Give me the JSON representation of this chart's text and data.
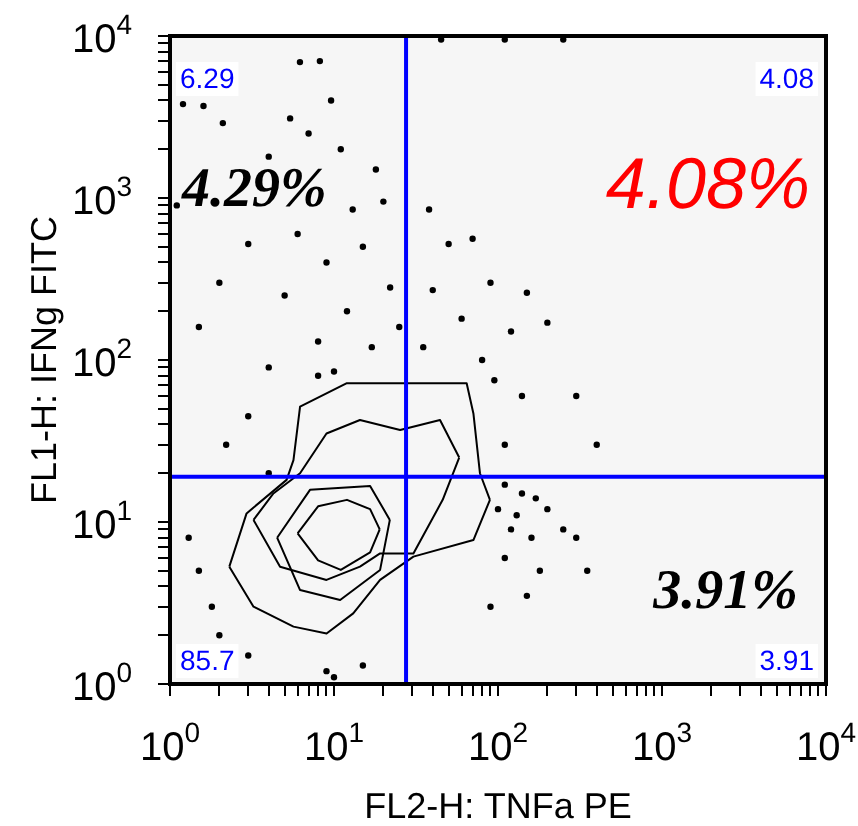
{
  "chart_data": {
    "type": "scatter",
    "xlabel": "FL2-H: TNFa PE",
    "ylabel": "FL1-H: IFNg FITC",
    "log": "xy",
    "grid": false,
    "legend": false,
    "marker": "circle",
    "xlim": [
      1,
      10000
    ],
    "ylim": [
      1,
      10000
    ],
    "xticks": [
      {
        "value": 1,
        "label": "10$^{0}$"
      },
      {
        "value": 2,
        "label": null
      },
      {
        "value": 3,
        "label": null
      },
      {
        "value": 4,
        "label": null
      },
      {
        "value": 5,
        "label": null
      },
      {
        "value": 6,
        "label": null
      },
      {
        "value": 7,
        "label": null
      },
      {
        "value": 8,
        "label": null
      },
      {
        "value": 9,
        "label": null
      },
      {
        "value": 10,
        "label": "10$^{1}$"
      },
      {
        "value": 20,
        "label": null
      },
      {
        "value": 30,
        "label": null
      },
      {
        "value": 40,
        "label": null
      },
      {
        "value": 50,
        "label": null
      },
      {
        "value": 60,
        "label": null
      },
      {
        "value": 70,
        "label": null
      },
      {
        "value": 80,
        "label": null
      },
      {
        "value": 90,
        "label": null
      },
      {
        "value": 100,
        "label": "10$^{2}$"
      },
      {
        "value": 200,
        "label": null
      },
      {
        "value": 300,
        "label": null
      },
      {
        "value": 400,
        "label": null
      },
      {
        "value": 500,
        "label": null
      },
      {
        "value": 600,
        "label": null
      },
      {
        "value": 700,
        "label": null
      },
      {
        "value": 800,
        "label": null
      },
      {
        "value": 900,
        "label": null
      },
      {
        "value": 1000,
        "label": "10$^{3}$"
      },
      {
        "value": 2000,
        "label": null
      },
      {
        "value": 3000,
        "label": null
      },
      {
        "value": 4000,
        "label": null
      },
      {
        "value": 5000,
        "label": null
      },
      {
        "value": 6000,
        "label": null
      },
      {
        "value": 7000,
        "label": null
      },
      {
        "value": 8000,
        "label": null
      },
      {
        "value": 9000,
        "label": null
      },
      {
        "value": 10000,
        "label": "10$^{4}$"
      }
    ],
    "yticks": [
      {
        "value": 1,
        "label": "10$^{0}$"
      },
      {
        "value": 2,
        "label": null
      },
      {
        "value": 3,
        "label": null
      },
      {
        "value": 4,
        "label": null
      },
      {
        "value": 5,
        "label": null
      },
      {
        "value": 6,
        "label": null
      },
      {
        "value": 7,
        "label": null
      },
      {
        "value": 8,
        "label": null
      },
      {
        "value": 9,
        "label": null
      },
      {
        "value": 10,
        "label": "10$^{1}$"
      },
      {
        "value": 20,
        "label": null
      },
      {
        "value": 30,
        "label": null
      },
      {
        "value": 40,
        "label": null
      },
      {
        "value": 50,
        "label": null
      },
      {
        "value": 60,
        "label": null
      },
      {
        "value": 70,
        "label": null
      },
      {
        "value": 80,
        "label": null
      },
      {
        "value": 90,
        "label": null
      },
      {
        "value": 100,
        "label": "10$^{2}$"
      },
      {
        "value": 200,
        "label": null
      },
      {
        "value": 300,
        "label": null
      },
      {
        "value": 400,
        "label": null
      },
      {
        "value": 500,
        "label": null
      },
      {
        "value": 600,
        "label": null
      },
      {
        "value": 700,
        "label": null
      },
      {
        "value": 800,
        "label": null
      },
      {
        "value": 900,
        "label": null
      },
      {
        "value": 1000,
        "label": "10$^{3}$"
      },
      {
        "value": 2000,
        "label": null
      },
      {
        "value": 3000,
        "label": null
      },
      {
        "value": 4000,
        "label": null
      },
      {
        "value": 5000,
        "label": null
      },
      {
        "value": 6000,
        "label": null
      },
      {
        "value": 7000,
        "label": null
      },
      {
        "value": 8000,
        "label": null
      },
      {
        "value": 9000,
        "label": null
      },
      {
        "value": 10000,
        "label": "10$^{4}$"
      }
    ],
    "ref_lines": [
      {
        "axis": "x",
        "value": 27.5,
        "color": "#0000ff"
      },
      {
        "axis": "y",
        "value": 19,
        "color": "#0000ff"
      }
    ],
    "annotations": [
      "6.29",
      "4.08",
      "85.7",
      "3.91",
      "4.29%",
      "4.08%",
      "3.91%"
    ],
    "series": [
      {
        "type": "scatter",
        "color": "#000000",
        "x": [
          6.2,
          8.2,
          9.6,
          1.2,
          1.6,
          2.1,
          5.4,
          7,
          4,
          11,
          18,
          1.1,
          13,
          20,
          3,
          6,
          9,
          15,
          2,
          5,
          12,
          22,
          1.5,
          8,
          17,
          25,
          4,
          10,
          45,
          110,
          250,
          38,
          50,
          70,
          90,
          40,
          150,
          60,
          120,
          200,
          35,
          80,
          95,
          140,
          300,
          400,
          110,
          110,
          140,
          170,
          100,
          130,
          200,
          250,
          120,
          160,
          300,
          110,
          180,
          350,
          90,
          150,
          1.3,
          1.5,
          1.8,
          2,
          3,
          9,
          15,
          4,
          2.2,
          3,
          8,
          10
        ],
        "values": [
          6900,
          7000,
          4000,
          3800,
          3700,
          2900,
          3100,
          2500,
          1800,
          2000,
          1500,
          900,
          850,
          950,
          520,
          600,
          400,
          500,
          300,
          250,
          200,
          280,
          160,
          130,
          120,
          160,
          90,
          85,
          9500,
          9500,
          9500,
          850,
          520,
          560,
          300,
          270,
          260,
          180,
          150,
          170,
          120,
          100,
          75,
          60,
          60,
          30,
          30,
          17,
          15,
          14,
          12,
          11,
          12,
          9,
          9,
          8,
          8,
          6,
          5,
          5,
          3,
          3.5,
          8,
          5,
          3,
          2,
          1.5,
          1.2,
          1.3,
          20,
          30,
          45,
          80,
          1.1
        ]
      },
      {
        "type": "line",
        "marker": "none",
        "color": "#000000",
        "x": [
          2.3,
          2.93,
          5.14,
          5.66,
          6.21,
          11.9,
          64.4,
          70.8,
          77.6,
          89.3
        ],
        "values": [
          5.3,
          11.3,
          18.2,
          24.1,
          51.5,
          71.8,
          71.8,
          46.8,
          20,
          13.7
        ]
      },
      {
        "type": "line",
        "marker": "none",
        "color": "#000000",
        "x": [
          2.3,
          3.23,
          5.66,
          9.01,
          13.1,
          19.1,
          30.5,
          70.8,
          89.3
        ],
        "values": [
          5.3,
          3,
          2.26,
          2.05,
          2.73,
          4.39,
          6.11,
          7.74,
          13.7
        ]
      },
      {
        "type": "line",
        "marker": "none",
        "color": "#000000",
        "x": [
          3.23,
          4.27,
          6.21,
          9,
          14.4,
          25.3,
          44.3,
          58
        ],
        "values": [
          10.3,
          15,
          20,
          35.2,
          42.6,
          37,
          42.6,
          25
        ]
      },
      {
        "type": "line",
        "marker": "none",
        "color": "#000000",
        "x": [
          3.23,
          4.69,
          9,
          14.4,
          19.1,
          30.5,
          46,
          58
        ],
        "values": [
          10.3,
          5.3,
          4.39,
          5.3,
          6.4,
          6.4,
          13.7,
          25
        ]
      },
      {
        "type": "line",
        "marker": "none",
        "color": "#000000",
        "x": [
          4.5,
          7.14,
          16.6,
          21.9
        ],
        "values": [
          8,
          15.8,
          16.7,
          10.3
        ]
      },
      {
        "type": "line",
        "marker": "none",
        "color": "#000000",
        "x": [
          4.5,
          6.21,
          10.9,
          19.1,
          21.9
        ],
        "values": [
          8,
          3.8,
          3.3,
          5.06,
          10.3
        ]
      },
      {
        "type": "line",
        "marker": "none",
        "color": "#000000",
        "x": [
          6,
          8,
          12,
          16.6,
          19
        ],
        "values": [
          8.5,
          12.5,
          13.7,
          12,
          9
        ]
      },
      {
        "type": "line",
        "marker": "none",
        "color": "#000000",
        "x": [
          6,
          8,
          11,
          16.6,
          19
        ],
        "values": [
          8.5,
          5.8,
          5.06,
          6.5,
          9
        ]
      }
    ]
  }
}
